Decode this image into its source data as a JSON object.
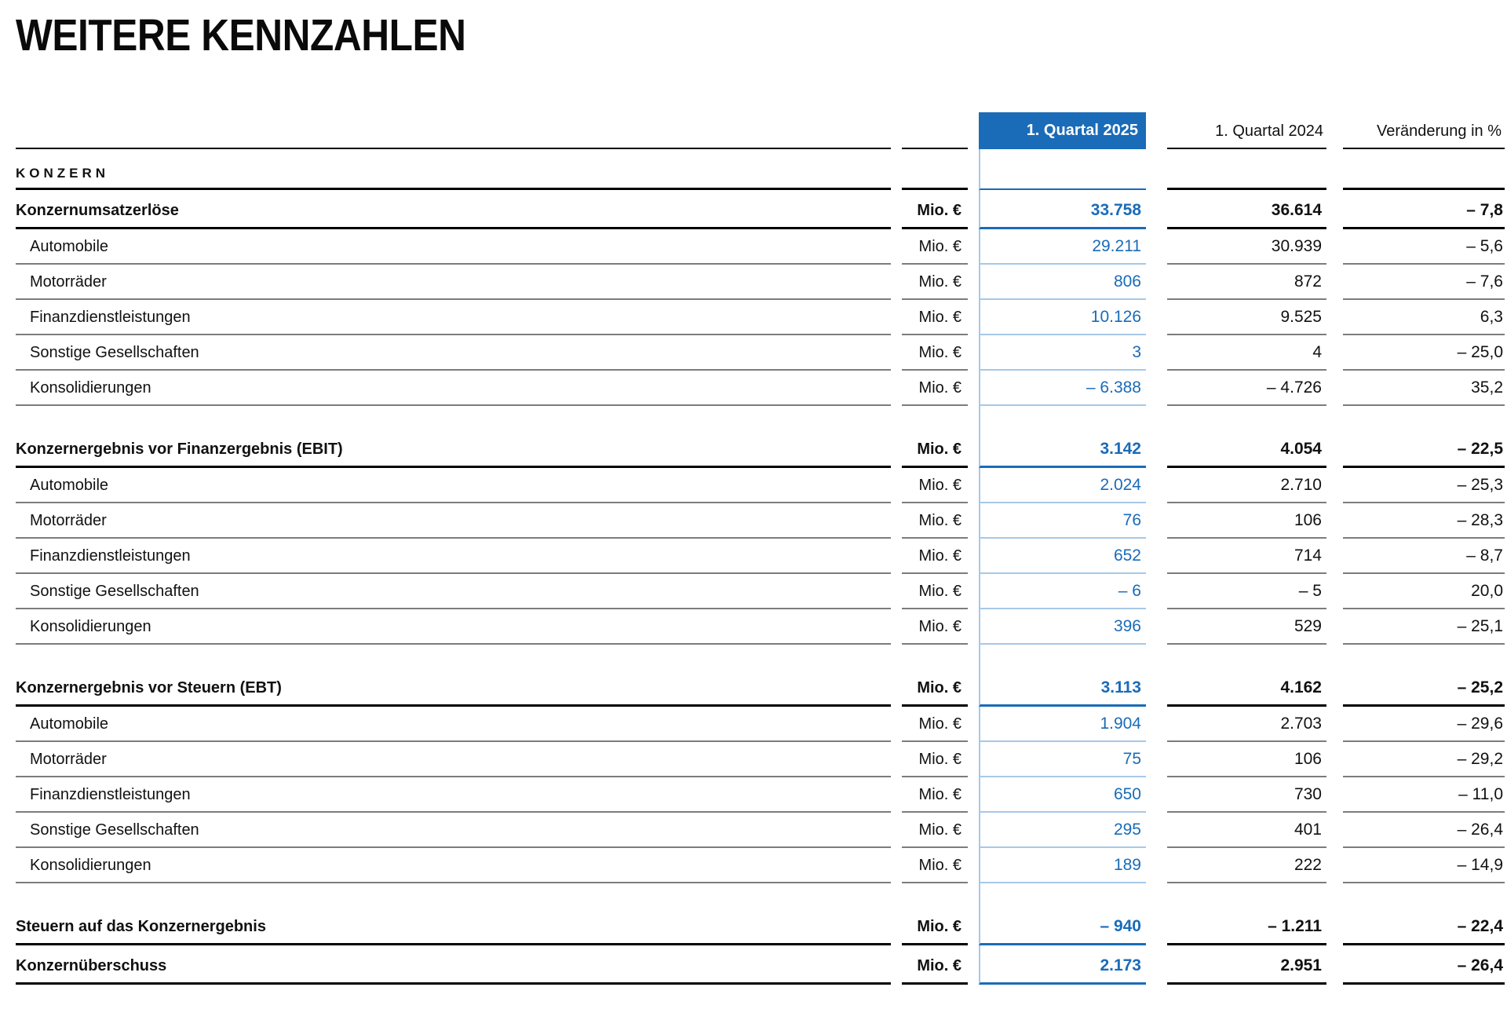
{
  "page_title": "WEITERE KENNZAHLEN",
  "colors": {
    "accent_blue": "#1a6bb8",
    "light_blue": "#a6c8e8",
    "line_gray": "#7c7c7c",
    "line_black": "#000000",
    "header_text_on_blue": "#ffffff"
  },
  "table": {
    "columns": {
      "q2025": "1. Quartal 2025",
      "q2024": "1. Quartal 2024",
      "change": "Veränderung in %"
    },
    "section_title": "KONZERN",
    "unit_label": "Mio. €",
    "rows": [
      {
        "type": "bold",
        "label": "Konzernumsatzerlöse",
        "unit": "Mio. €",
        "q2025": "33.758",
        "q2024": "36.614",
        "change": "– 7,8"
      },
      {
        "type": "sub",
        "label": "Automobile",
        "unit": "Mio. €",
        "q2025": "29.211",
        "q2024": "30.939",
        "change": "– 5,6"
      },
      {
        "type": "sub",
        "label": "Motorräder",
        "unit": "Mio. €",
        "q2025": "806",
        "q2024": "872",
        "change": "– 7,6"
      },
      {
        "type": "sub",
        "label": "Finanzdienstleistungen",
        "unit": "Mio. €",
        "q2025": "10.126",
        "q2024": "9.525",
        "change": "6,3"
      },
      {
        "type": "sub",
        "label": "Sonstige Gesellschaften",
        "unit": "Mio. €",
        "q2025": "3",
        "q2024": "4",
        "change": "– 25,0"
      },
      {
        "type": "sub",
        "label": "Konsolidierungen",
        "unit": "Mio. €",
        "q2025": "– 6.388",
        "q2024": "– 4.726",
        "change": "35,2"
      },
      {
        "type": "spacer"
      },
      {
        "type": "bold",
        "label": "Konzernergebnis vor Finanzergebnis (EBIT)",
        "unit": "Mio. €",
        "q2025": "3.142",
        "q2024": "4.054",
        "change": "– 22,5"
      },
      {
        "type": "sub",
        "label": "Automobile",
        "unit": "Mio. €",
        "q2025": "2.024",
        "q2024": "2.710",
        "change": "– 25,3"
      },
      {
        "type": "sub",
        "label": "Motorräder",
        "unit": "Mio. €",
        "q2025": "76",
        "q2024": "106",
        "change": "– 28,3"
      },
      {
        "type": "sub",
        "label": "Finanzdienstleistungen",
        "unit": "Mio. €",
        "q2025": "652",
        "q2024": "714",
        "change": "– 8,7"
      },
      {
        "type": "sub",
        "label": "Sonstige Gesellschaften",
        "unit": "Mio. €",
        "q2025": "– 6",
        "q2024": "– 5",
        "change": "20,0"
      },
      {
        "type": "sub",
        "label": "Konsolidierungen",
        "unit": "Mio. €",
        "q2025": "396",
        "q2024": "529",
        "change": "– 25,1"
      },
      {
        "type": "spacer"
      },
      {
        "type": "bold",
        "label": "Konzernergebnis vor Steuern (EBT)",
        "unit": "Mio. €",
        "q2025": "3.113",
        "q2024": "4.162",
        "change": "– 25,2"
      },
      {
        "type": "sub",
        "label": "Automobile",
        "unit": "Mio. €",
        "q2025": "1.904",
        "q2024": "2.703",
        "change": "– 29,6"
      },
      {
        "type": "sub",
        "label": "Motorräder",
        "unit": "Mio. €",
        "q2025": "75",
        "q2024": "106",
        "change": "– 29,2"
      },
      {
        "type": "sub",
        "label": "Finanzdienstleistungen",
        "unit": "Mio. €",
        "q2025": "650",
        "q2024": "730",
        "change": "– 11,0"
      },
      {
        "type": "sub",
        "label": "Sonstige Gesellschaften",
        "unit": "Mio. €",
        "q2025": "295",
        "q2024": "401",
        "change": "– 26,4"
      },
      {
        "type": "sub",
        "label": "Konsolidierungen",
        "unit": "Mio. €",
        "q2025": "189",
        "q2024": "222",
        "change": "– 14,9"
      },
      {
        "type": "spacer"
      },
      {
        "type": "bold",
        "label": "Steuern auf das Konzernergebnis",
        "unit": "Mio. €",
        "q2025": "– 940",
        "q2024": "– 1.211",
        "change": "– 22,4"
      },
      {
        "type": "bold",
        "label": "Konzernüberschuss",
        "unit": "Mio. €",
        "q2025": "2.173",
        "q2024": "2.951",
        "change": "– 26,4"
      }
    ]
  }
}
